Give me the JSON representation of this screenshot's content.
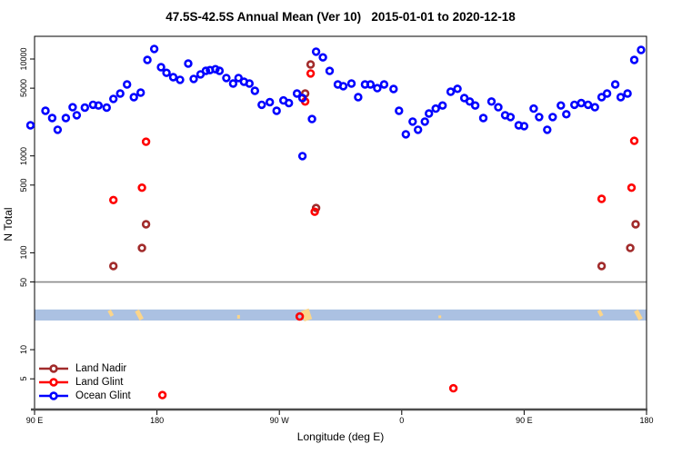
{
  "title": "47.5S-42.5S Annual Mean (Ver 10)   2015-01-01 to 2020-12-18",
  "chart_data": {
    "type": "scatter",
    "title": "47.5S-42.5S Annual Mean (Ver 10)   2015-01-01 to 2020-12-18",
    "xlabel": "Longitude (deg E)",
    "ylabel": "N Total",
    "x_axis": {
      "range_deg_east_wrapped": [
        90,
        540
      ],
      "ticks": [
        {
          "lon": 90,
          "label": "90 E"
        },
        {
          "lon": 180,
          "label": "180"
        },
        {
          "lon": 270,
          "label": "90 W"
        },
        {
          "lon": 360,
          "label": "0"
        },
        {
          "lon": 450,
          "label": "90 E"
        },
        {
          "lon": 540,
          "label": "180"
        }
      ]
    },
    "y_axis": {
      "scale": "log10",
      "range": [
        2.5,
        17000
      ],
      "ticks": [
        {
          "value": 10000,
          "label": "10000"
        },
        {
          "value": 5000,
          "label": "5000"
        },
        {
          "value": 1000,
          "label": "1000"
        },
        {
          "value": 500,
          "label": "500"
        },
        {
          "value": 100,
          "label": "100"
        },
        {
          "value": 50,
          "label": "50"
        },
        {
          "value": 10,
          "label": "10"
        },
        {
          "value": 5,
          "label": "5"
        }
      ]
    },
    "reference_line_value": 50,
    "band": {
      "y_from": 20,
      "y_to": 26,
      "color": "#abc1e2",
      "patch_color": "#fbd58a",
      "patches": [
        {
          "lon": 146,
          "w": 4,
          "h": 7,
          "tilt": -28,
          "dy": -2
        },
        {
          "lon": 167,
          "w": 5,
          "h": 11,
          "tilt": -28,
          "dy": 0
        },
        {
          "lon": 240,
          "w": 3,
          "h": 4,
          "tilt": 0,
          "dy": 2
        },
        {
          "lon": 290,
          "w": 9,
          "h": 12,
          "tilt": -18,
          "dy": 0
        },
        {
          "lon": 388,
          "w": 3,
          "h": 3,
          "tilt": 0,
          "dy": 2
        },
        {
          "lon": 506,
          "w": 4,
          "h": 7,
          "tilt": -28,
          "dy": -2
        },
        {
          "lon": 534,
          "w": 5,
          "h": 11,
          "tilt": -28,
          "dy": 0
        }
      ]
    },
    "series": [
      {
        "name": "Land Nadir",
        "color": "#a12b2b",
        "points": [
          [
            148,
            73
          ],
          [
            169,
            112
          ],
          [
            172,
            197
          ],
          [
            289,
            4400
          ],
          [
            293,
            8790
          ],
          [
            297,
            290
          ],
          [
            507,
            73
          ],
          [
            528,
            112
          ],
          [
            532,
            197
          ]
        ]
      },
      {
        "name": "Land Glint",
        "color": "#ff0000",
        "points": [
          [
            148,
            350
          ],
          [
            169,
            470
          ],
          [
            172,
            1400
          ],
          [
            184,
            3.4
          ],
          [
            285,
            22
          ],
          [
            289,
            3640
          ],
          [
            293,
            7090
          ],
          [
            296,
            265
          ],
          [
            398,
            4
          ],
          [
            507,
            360
          ],
          [
            529,
            470
          ],
          [
            531,
            1430
          ]
        ]
      },
      {
        "name": "Ocean Glint",
        "color": "#0000ff",
        "points": [
          [
            87,
            2070
          ],
          [
            98,
            2925
          ],
          [
            103,
            2460
          ],
          [
            107,
            1860
          ],
          [
            113,
            2460
          ],
          [
            118,
            3180
          ],
          [
            121,
            2630
          ],
          [
            127,
            3150
          ],
          [
            133,
            3370
          ],
          [
            137,
            3310
          ],
          [
            143,
            3150
          ],
          [
            148,
            3880
          ],
          [
            153,
            4400
          ],
          [
            158,
            5470
          ],
          [
            163,
            4040
          ],
          [
            168,
            4500
          ],
          [
            173,
            9780
          ],
          [
            178,
            12700
          ],
          [
            183,
            8230
          ],
          [
            187,
            7200
          ],
          [
            192,
            6500
          ],
          [
            197,
            6100
          ],
          [
            203,
            8970
          ],
          [
            207,
            6230
          ],
          [
            212,
            6950
          ],
          [
            216,
            7560
          ],
          [
            219,
            7690
          ],
          [
            223,
            7850
          ],
          [
            226,
            7560
          ],
          [
            231,
            6370
          ],
          [
            236,
            5590
          ],
          [
            240,
            6370
          ],
          [
            244,
            5830
          ],
          [
            248,
            5590
          ],
          [
            252,
            4700
          ],
          [
            257,
            3370
          ],
          [
            263,
            3590
          ],
          [
            268,
            2925
          ],
          [
            273,
            3740
          ],
          [
            277,
            3510
          ],
          [
            283,
            4400
          ],
          [
            287,
            3950
          ],
          [
            287,
            995
          ],
          [
            294,
            2400
          ],
          [
            297,
            11900
          ],
          [
            302,
            10400
          ],
          [
            307,
            7530
          ],
          [
            313,
            5470
          ],
          [
            317,
            5240
          ],
          [
            323,
            5590
          ],
          [
            328,
            4040
          ],
          [
            333,
            5470
          ],
          [
            337,
            5470
          ],
          [
            342,
            5000
          ],
          [
            347,
            5470
          ],
          [
            354,
            4910
          ],
          [
            358,
            2920
          ],
          [
            363,
            1670
          ],
          [
            368,
            2260
          ],
          [
            372,
            1860
          ],
          [
            377,
            2260
          ],
          [
            380,
            2740
          ],
          [
            385,
            3080
          ],
          [
            390,
            3310
          ],
          [
            396,
            4600
          ],
          [
            401,
            4930
          ],
          [
            406,
            3950
          ],
          [
            410,
            3640
          ],
          [
            414,
            3310
          ],
          [
            420,
            2460
          ],
          [
            426,
            3640
          ],
          [
            431,
            3180
          ],
          [
            436,
            2630
          ],
          [
            440,
            2520
          ],
          [
            446,
            2070
          ],
          [
            450,
            2030
          ],
          [
            457,
            3080
          ],
          [
            461,
            2520
          ],
          [
            467,
            1860
          ],
          [
            471,
            2520
          ],
          [
            477,
            3310
          ],
          [
            481,
            2690
          ],
          [
            487,
            3370
          ],
          [
            492,
            3510
          ],
          [
            497,
            3370
          ],
          [
            502,
            3180
          ],
          [
            507,
            4040
          ],
          [
            511,
            4400
          ],
          [
            517,
            5470
          ],
          [
            521,
            4040
          ],
          [
            526,
            4400
          ],
          [
            531,
            9780
          ],
          [
            536,
            12400
          ]
        ]
      }
    ],
    "legend_position": "bottom-left"
  },
  "legend": {
    "items": [
      {
        "label": "Land Nadir",
        "color": "#a12b2b"
      },
      {
        "label": "Land Glint",
        "color": "#ff0000"
      },
      {
        "label": "Ocean Glint",
        "color": "#0000ff"
      }
    ]
  },
  "colors": {
    "border": "#000000",
    "reference_line": "#8a8a8a",
    "bottom_axis_line": "#4d4d4d"
  }
}
